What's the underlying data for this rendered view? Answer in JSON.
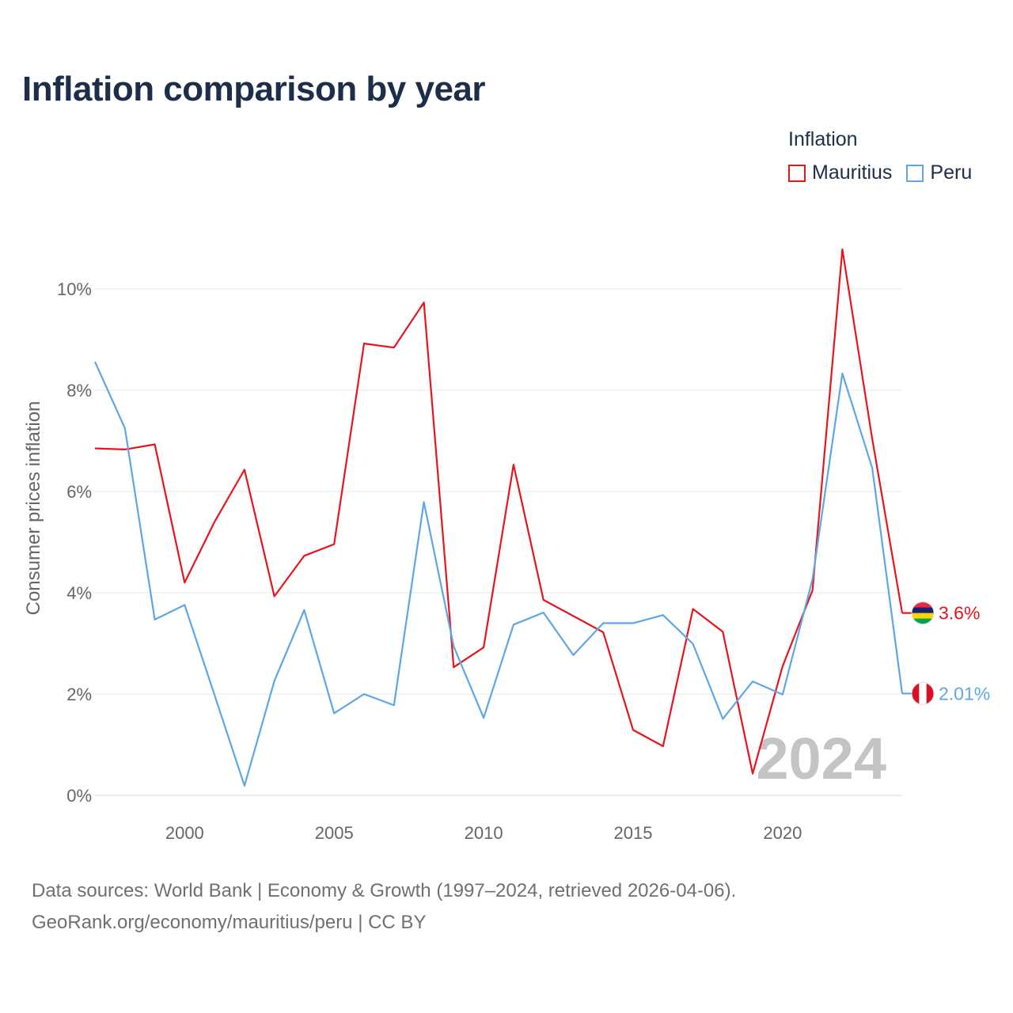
{
  "title": "Inflation comparison by year",
  "legend": {
    "title": "Inflation",
    "items": [
      {
        "label": "Mauritius",
        "color": "#e8141c"
      },
      {
        "label": "Peru",
        "color": "#5ea6e6"
      }
    ]
  },
  "source": {
    "line1": "Data sources: World Bank | Economy & Growth (1997–2024, retrieved 2026-04-06).",
    "line2": "GeoRank.org/economy/mauritius/peru | CC BY"
  },
  "chart_data": {
    "type": "line",
    "title": "Inflation comparison by year",
    "xlabel": "",
    "ylabel": "Consumer prices inflation",
    "xlim": [
      1997,
      2024
    ],
    "ylim": [
      0,
      10
    ],
    "y_ticks": [
      0,
      2,
      4,
      6,
      8,
      10
    ],
    "y_tick_labels": [
      "0%",
      "2%",
      "4%",
      "6%",
      "8%",
      "10%"
    ],
    "x_ticks": [
      2000,
      2005,
      2010,
      2015,
      2020
    ],
    "x_tick_labels": [
      "2000",
      "2005",
      "2010",
      "2015",
      "2020"
    ],
    "grid": true,
    "year_watermark": "2024",
    "x": [
      1997,
      1998,
      1999,
      2000,
      2001,
      2002,
      2003,
      2004,
      2005,
      2006,
      2007,
      2008,
      2009,
      2010,
      2011,
      2012,
      2013,
      2014,
      2015,
      2016,
      2017,
      2018,
      2019,
      2020,
      2021,
      2022,
      2023,
      2024
    ],
    "series": [
      {
        "name": "Mauritius",
        "color": "#e8141c",
        "end_label": "3.6%",
        "values": [
          6.85,
          6.83,
          6.93,
          4.2,
          5.4,
          6.43,
          3.93,
          4.73,
          4.96,
          8.92,
          8.84,
          9.73,
          2.53,
          2.92,
          6.53,
          3.86,
          3.54,
          3.22,
          1.29,
          0.97,
          3.68,
          3.23,
          0.43,
          2.55,
          4.05,
          10.78,
          7.03,
          3.6
        ]
      },
      {
        "name": "Peru",
        "color": "#5ea6e6",
        "end_label": "2.01%",
        "values": [
          8.56,
          7.25,
          3.47,
          3.76,
          1.98,
          0.19,
          2.26,
          3.66,
          1.62,
          2.0,
          1.78,
          5.79,
          2.94,
          1.53,
          3.37,
          3.61,
          2.77,
          3.4,
          3.4,
          3.56,
          2.99,
          1.51,
          2.25,
          1.99,
          4.27,
          8.33,
          6.46,
          2.01
        ]
      }
    ]
  }
}
